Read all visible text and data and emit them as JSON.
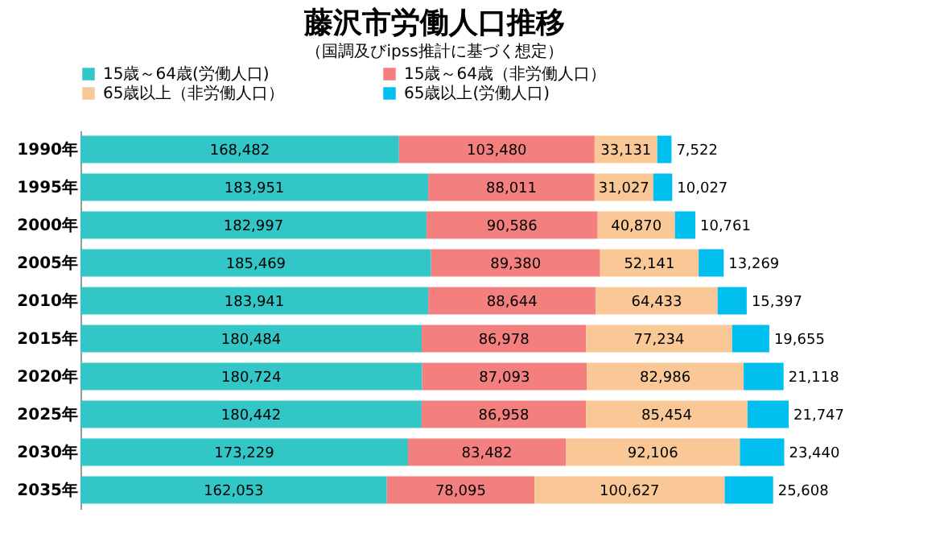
{
  "chart_data": {
    "type": "bar",
    "orientation": "horizontal",
    "stacked": true,
    "legend": "top",
    "tick_labels": "y",
    "title": "藤沢市労働人口推移",
    "subtitle": "（国調及びipss推計に基づく想定）",
    "categories": [
      "1990年",
      "1995年",
      "2000年",
      "2005年",
      "2010年",
      "2015年",
      "2020年",
      "2025年",
      "2030年",
      "2035年"
    ],
    "series": [
      {
        "name": "15歳～64歳(労働人口)",
        "color": "#33c6c6",
        "values": [
          168482,
          183951,
          182997,
          185469,
          183941,
          180484,
          180724,
          180442,
          173229,
          162053
        ],
        "value_labels": [
          "168,482",
          "183,951",
          "182,997",
          "185,469",
          "183,941",
          "180,484",
          "180,724",
          "180,442",
          "173,229",
          "162,053"
        ]
      },
      {
        "name": "15歳～64歳（非労働人口）",
        "color": "#f47f7f",
        "values": [
          103480,
          88011,
          90586,
          89380,
          88644,
          86978,
          87093,
          86958,
          83482,
          78095
        ],
        "value_labels": [
          "103,480",
          "88,011",
          "90,586",
          "89,380",
          "88,644",
          "86,978",
          "87,093",
          "86,958",
          "83,482",
          "78,095"
        ]
      },
      {
        "name": "65歳以上（非労働人口）",
        "color": "#f9c896",
        "values": [
          33131,
          31027,
          40870,
          52141,
          64433,
          77234,
          82986,
          85454,
          92106,
          100627
        ],
        "value_labels": [
          "33,131",
          "31,027",
          "40,870",
          "52,141",
          "64,433",
          "77,234",
          "82,986",
          "85,454",
          "92,106",
          "100,627"
        ]
      },
      {
        "name": "65歳以上(労働人口)",
        "color": "#00bfef",
        "values": [
          7522,
          10027,
          10761,
          13269,
          15397,
          19655,
          21118,
          21747,
          23440,
          25608
        ],
        "value_labels": [
          "7,522",
          "10,027",
          "10,761",
          "13,269",
          "15,397",
          "19,655",
          "21,118",
          "21,747",
          "23,440",
          "25,608"
        ]
      }
    ]
  }
}
